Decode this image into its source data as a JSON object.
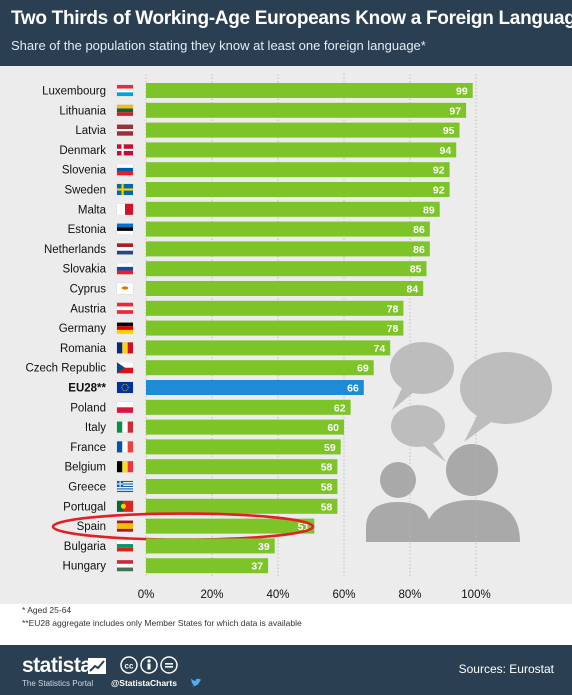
{
  "header": {
    "title": "Two Thirds of Working-Age Europeans Know a Foreign Language",
    "subtitle": "Share of the population stating they know at least one foreign language*"
  },
  "chart_data": {
    "type": "bar",
    "orientation": "horizontal",
    "categories": [
      "Luxembourg",
      "Lithuania",
      "Latvia",
      "Denmark",
      "Slovenia",
      "Sweden",
      "Malta",
      "Estonia",
      "Netherlands",
      "Slovakia",
      "Cyprus",
      "Austria",
      "Germany",
      "Romania",
      "Czech Republic",
      "EU28**",
      "Poland",
      "Italy",
      "France",
      "Belgium",
      "Greece",
      "Portugal",
      "Spain",
      "Bulgaria",
      "Hungary"
    ],
    "values": [
      99,
      97,
      95,
      94,
      92,
      92,
      89,
      86,
      86,
      85,
      84,
      78,
      78,
      74,
      69,
      66,
      62,
      60,
      59,
      58,
      58,
      58,
      51,
      39,
      37
    ],
    "highlight_category": "EU28**",
    "circled_category": "Spain",
    "x_ticks": [
      "0%",
      "20%",
      "40%",
      "60%",
      "80%",
      "100%"
    ],
    "xlim": [
      0,
      100
    ],
    "grid": "vertical dotted",
    "colors": {
      "bar": "#7cc427",
      "highlight_bar": "#1f8bd6",
      "circle": "#e31e24",
      "background": "#ececec",
      "header": "#2a3f52"
    },
    "flags": [
      {
        "country": "Luxembourg",
        "stripes": "h",
        "colors": [
          "#ed2939",
          "#ffffff",
          "#00a1de"
        ]
      },
      {
        "country": "Lithuania",
        "stripes": "h",
        "colors": [
          "#fdb913",
          "#006a44",
          "#c1272d"
        ]
      },
      {
        "country": "Latvia",
        "stripes": "h3",
        "colors": [
          "#9e3039",
          "#ffffff",
          "#9e3039"
        ]
      },
      {
        "country": "Denmark",
        "stripes": "nordic",
        "colors": [
          "#c60c30",
          "#ffffff"
        ]
      },
      {
        "country": "Slovenia",
        "stripes": "h",
        "colors": [
          "#ffffff",
          "#005da4",
          "#ed1c24"
        ]
      },
      {
        "country": "Sweden",
        "stripes": "nordic",
        "colors": [
          "#006aa7",
          "#fecc00"
        ]
      },
      {
        "country": "Malta",
        "stripes": "v",
        "colors": [
          "#ffffff",
          "#cf142b"
        ]
      },
      {
        "country": "Estonia",
        "stripes": "h",
        "colors": [
          "#0072ce",
          "#000000",
          "#ffffff"
        ]
      },
      {
        "country": "Netherlands",
        "stripes": "h",
        "colors": [
          "#ae1c28",
          "#ffffff",
          "#21468b"
        ]
      },
      {
        "country": "Slovakia",
        "stripes": "h",
        "colors": [
          "#ffffff",
          "#0b4ea2",
          "#ee1c25"
        ]
      },
      {
        "country": "Cyprus",
        "stripes": "plain",
        "colors": [
          "#ffffff",
          "#d57800"
        ]
      },
      {
        "country": "Austria",
        "stripes": "h",
        "colors": [
          "#ed2939",
          "#ffffff",
          "#ed2939"
        ]
      },
      {
        "country": "Germany",
        "stripes": "h",
        "colors": [
          "#000000",
          "#dd0000",
          "#ffce00"
        ]
      },
      {
        "country": "Romania",
        "stripes": "v",
        "colors": [
          "#002b7f",
          "#fcd116",
          "#ce1126"
        ]
      },
      {
        "country": "Czech Republic",
        "stripes": "czech",
        "colors": [
          "#ffffff",
          "#d7141a",
          "#11457e"
        ]
      },
      {
        "country": "EU28**",
        "stripes": "plain",
        "colors": [
          "#003399",
          "#ffcc00"
        ]
      },
      {
        "country": "Poland",
        "stripes": "h",
        "colors": [
          "#ffffff",
          "#dc143c"
        ]
      },
      {
        "country": "Italy",
        "stripes": "v",
        "colors": [
          "#009246",
          "#ffffff",
          "#ce2b37"
        ]
      },
      {
        "country": "France",
        "stripes": "v",
        "colors": [
          "#0055a4",
          "#ffffff",
          "#ef4135"
        ]
      },
      {
        "country": "Belgium",
        "stripes": "v",
        "colors": [
          "#000000",
          "#fdda24",
          "#ef3340"
        ]
      },
      {
        "country": "Greece",
        "stripes": "greece",
        "colors": [
          "#0d5eaf",
          "#ffffff"
        ]
      },
      {
        "country": "Portugal",
        "stripes": "v2",
        "colors": [
          "#046a38",
          "#da291c"
        ]
      },
      {
        "country": "Spain",
        "stripes": "h3w",
        "colors": [
          "#aa151b",
          "#f1bf00",
          "#aa151b"
        ]
      },
      {
        "country": "Bulgaria",
        "stripes": "h",
        "colors": [
          "#ffffff",
          "#00966e",
          "#d62612"
        ]
      },
      {
        "country": "Hungary",
        "stripes": "h",
        "colors": [
          "#ce2939",
          "#ffffff",
          "#477050"
        ]
      }
    ]
  },
  "footnotes": {
    "note1": "* Aged 25-64",
    "note2": "**EU28 aggregate includes only Member States for which data is available"
  },
  "footer": {
    "brand": "statista",
    "tagline": "The Statistics Portal",
    "handle": "@StatistaCharts",
    "sources": "Sources: Eurostat"
  }
}
